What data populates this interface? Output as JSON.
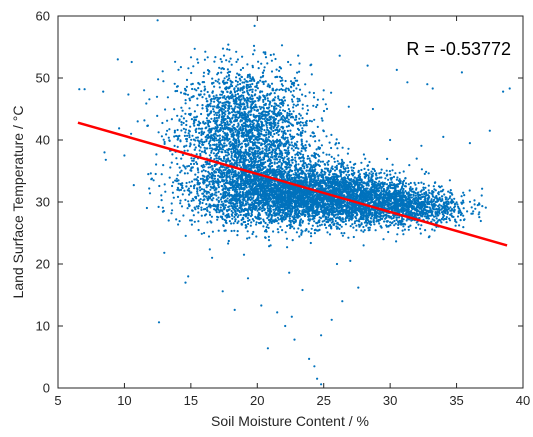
{
  "chart_data": {
    "type": "scatter",
    "xlabel": "Soil Moisture Content / %",
    "ylabel": "Land Surface Temperature / °C",
    "xlim": [
      5,
      40
    ],
    "ylim": [
      0,
      60
    ],
    "xticks": [
      5,
      10,
      15,
      20,
      25,
      30,
      35,
      40
    ],
    "yticks": [
      0,
      10,
      20,
      30,
      40,
      50,
      60
    ],
    "grid": false,
    "box": true,
    "annotation": "R = -0.53772",
    "annotation_position": "top-right",
    "marker_color": "#0072BD",
    "fit_line": {
      "color": "#FF0000",
      "x": [
        6.5,
        38.8
      ],
      "y": [
        42.8,
        23.0
      ]
    },
    "scatter_clusters": [
      {
        "cx": 19.0,
        "cy": 41.0,
        "sx": 2.5,
        "sy": 5.5,
        "n": 2600
      },
      {
        "cx": 22.0,
        "cy": 31.5,
        "sx": 3.3,
        "sy": 2.6,
        "n": 3200
      },
      {
        "cx": 27.0,
        "cy": 30.5,
        "sx": 2.8,
        "sy": 2.0,
        "n": 1900
      },
      {
        "cx": 31.5,
        "cy": 29.0,
        "sx": 2.3,
        "sy": 1.5,
        "n": 900
      }
    ],
    "scatter_points": [
      [
        12.5,
        59.3
      ],
      [
        19.8,
        58.4
      ],
      [
        12.6,
        10.6
      ],
      [
        24.8,
        0.6
      ],
      [
        24.5,
        1.5
      ],
      [
        6.6,
        48.2
      ],
      [
        7.0,
        48.2
      ],
      [
        8.4,
        47.8
      ],
      [
        8.6,
        36.8
      ],
      [
        8.5,
        38.0
      ],
      [
        9.5,
        53.0
      ],
      [
        10.0,
        37.5
      ],
      [
        13.0,
        21.8
      ],
      [
        14.6,
        17.0
      ],
      [
        14.8,
        18.0
      ],
      [
        16.0,
        25.0
      ],
      [
        16.6,
        21.0
      ],
      [
        17.4,
        15.6
      ],
      [
        18.3,
        12.6
      ],
      [
        19.3,
        17.7
      ],
      [
        20.3,
        13.3
      ],
      [
        20.8,
        6.4
      ],
      [
        21.5,
        12.2
      ],
      [
        22.1,
        10.0
      ],
      [
        22.6,
        11.5
      ],
      [
        22.8,
        7.8
      ],
      [
        23.4,
        15.8
      ],
      [
        23.9,
        4.7
      ],
      [
        24.3,
        3.5
      ],
      [
        24.8,
        8.5
      ],
      [
        25.6,
        11.0
      ],
      [
        26.4,
        14.0
      ],
      [
        26.0,
        20.0
      ],
      [
        23.7,
        25.5
      ],
      [
        27.0,
        20.5
      ],
      [
        27.6,
        16.2
      ],
      [
        28.0,
        23.0
      ],
      [
        31.3,
        49.3
      ],
      [
        32.8,
        49.0
      ],
      [
        33.2,
        48.3
      ],
      [
        35.4,
        50.9
      ],
      [
        37.5,
        41.5
      ],
      [
        38.5,
        47.8
      ],
      [
        39.0,
        48.3
      ],
      [
        36.6,
        29.5
      ],
      [
        37.2,
        29.1
      ],
      [
        30.5,
        51.3
      ],
      [
        28.3,
        52.0
      ],
      [
        26.2,
        53.6
      ],
      [
        25.0,
        48.0
      ],
      [
        11.0,
        43.0
      ],
      [
        10.5,
        41.0
      ],
      [
        11.8,
        34.5
      ],
      [
        12.8,
        30.3
      ],
      [
        13.9,
        27.2
      ],
      [
        15.3,
        26.8
      ],
      [
        17.8,
        23.3
      ],
      [
        19.0,
        21.5
      ],
      [
        21.0,
        23.0
      ],
      [
        22.4,
        18.6
      ],
      [
        29.5,
        24.0
      ],
      [
        31.0,
        24.8
      ],
      [
        33.5,
        26.5
      ],
      [
        34.5,
        33.5
      ],
      [
        35.5,
        31.5
      ],
      [
        32.0,
        37.0
      ],
      [
        30.0,
        40.0
      ],
      [
        34.0,
        40.5
      ],
      [
        36.0,
        39.5
      ],
      [
        28.7,
        45.0
      ]
    ]
  }
}
